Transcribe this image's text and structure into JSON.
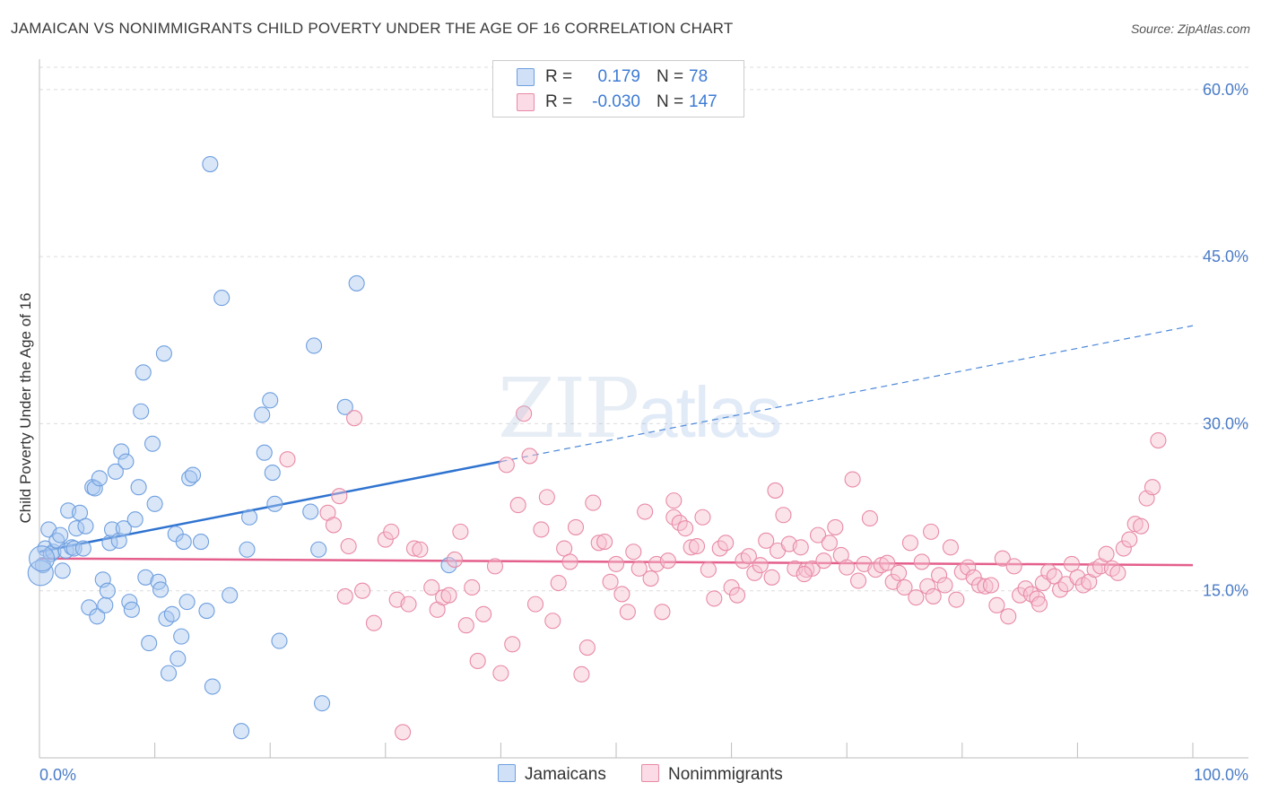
{
  "title": "JAMAICAN VS NONIMMIGRANTS CHILD POVERTY UNDER THE AGE OF 16 CORRELATION CHART",
  "source": "Source: ZipAtlas.com",
  "watermark": {
    "zip": "ZIP",
    "atlas": "atlas"
  },
  "legend": {
    "rows": [
      {
        "r_label": "R =",
        "r_value": "0.179",
        "n_label": "N =",
        "n_value": "78",
        "color": "#a9c8f0",
        "border": "#6f9fdf"
      },
      {
        "r_label": "R =",
        "r_value": "-0.030",
        "n_label": "N =",
        "n_value": "147",
        "color": "#f7c1d1",
        "border": "#e88aa6"
      }
    ]
  },
  "bottom_legend": [
    {
      "label": "Jamaicans",
      "color": "#a9c8f0",
      "border": "#6f9fdf"
    },
    {
      "label": "Nonimmigrants",
      "color": "#f7c1d1",
      "border": "#e88aa6"
    }
  ],
  "chart_data": {
    "type": "scatter",
    "xlabel": "",
    "ylabel": "Child Poverty Under the Age of 16",
    "x_tick_labels": [
      "0.0%",
      "100.0%"
    ],
    "y_tick_labels": [
      "15.0%",
      "30.0%",
      "45.0%",
      "60.0%"
    ],
    "xlim": [
      0,
      100
    ],
    "ylim": [
      0,
      60
    ],
    "grid": true,
    "series": [
      {
        "name": "Jamaicans",
        "color": "#6f9fdf",
        "fill": "#a9c8f0",
        "trend": {
          "x0": 0,
          "y0": 18.5,
          "x1": 40,
          "y1": 26.6,
          "solid_until": 40,
          "x_end": 100,
          "y_end": 38.8
        },
        "points": [
          [
            0.3,
            17.3
          ],
          [
            0.5,
            18.8
          ],
          [
            0.8,
            20.5
          ],
          [
            1.0,
            18.3
          ],
          [
            1.2,
            18.5
          ],
          [
            1.5,
            19.5
          ],
          [
            1.8,
            20.0
          ],
          [
            2.0,
            16.8
          ],
          [
            2.3,
            18.6
          ],
          [
            2.5,
            22.2
          ],
          [
            2.8,
            18.9
          ],
          [
            3.0,
            18.8
          ],
          [
            3.2,
            20.6
          ],
          [
            3.5,
            22.0
          ],
          [
            3.8,
            18.8
          ],
          [
            4.0,
            20.8
          ],
          [
            4.3,
            13.5
          ],
          [
            4.6,
            24.3
          ],
          [
            4.8,
            24.2
          ],
          [
            5.0,
            12.7
          ],
          [
            5.2,
            25.1
          ],
          [
            5.5,
            16.0
          ],
          [
            5.7,
            13.7
          ],
          [
            5.9,
            15.0
          ],
          [
            6.1,
            19.3
          ],
          [
            6.3,
            20.5
          ],
          [
            6.6,
            25.7
          ],
          [
            6.9,
            19.5
          ],
          [
            7.1,
            27.5
          ],
          [
            7.3,
            20.6
          ],
          [
            7.5,
            26.6
          ],
          [
            7.8,
            14.0
          ],
          [
            8.0,
            13.3
          ],
          [
            8.3,
            21.4
          ],
          [
            8.6,
            24.3
          ],
          [
            8.8,
            31.1
          ],
          [
            9.0,
            34.6
          ],
          [
            9.2,
            16.2
          ],
          [
            9.5,
            10.3
          ],
          [
            9.8,
            28.2
          ],
          [
            10.0,
            22.8
          ],
          [
            10.3,
            15.8
          ],
          [
            10.5,
            15.1
          ],
          [
            10.8,
            36.3
          ],
          [
            11.0,
            12.5
          ],
          [
            11.2,
            7.6
          ],
          [
            11.5,
            12.9
          ],
          [
            11.8,
            20.1
          ],
          [
            12.0,
            8.9
          ],
          [
            12.3,
            10.9
          ],
          [
            12.5,
            19.4
          ],
          [
            12.8,
            14.0
          ],
          [
            13.0,
            25.1
          ],
          [
            13.3,
            25.4
          ],
          [
            14.0,
            19.4
          ],
          [
            14.5,
            13.2
          ],
          [
            14.8,
            53.3
          ],
          [
            15.0,
            6.4
          ],
          [
            15.8,
            41.3
          ],
          [
            16.5,
            14.6
          ],
          [
            17.5,
            2.4
          ],
          [
            18.0,
            18.7
          ],
          [
            18.2,
            21.6
          ],
          [
            19.3,
            30.8
          ],
          [
            19.5,
            27.4
          ],
          [
            20.0,
            32.1
          ],
          [
            20.2,
            25.6
          ],
          [
            20.4,
            22.8
          ],
          [
            20.8,
            10.5
          ],
          [
            23.5,
            22.1
          ],
          [
            23.8,
            37.0
          ],
          [
            24.2,
            18.7
          ],
          [
            24.5,
            4.9
          ],
          [
            26.5,
            31.5
          ],
          [
            27.5,
            42.6
          ],
          [
            35.5,
            17.3
          ],
          [
            0.1,
            16.6
          ],
          [
            0.2,
            17.9
          ]
        ]
      },
      {
        "name": "Nonimmigrants",
        "color": "#e88aa6",
        "fill": "#f7c1d1",
        "trend": {
          "x0": 0,
          "y0": 17.9,
          "x1": 100,
          "y1": 17.3
        },
        "points": [
          [
            21.5,
            26.8
          ],
          [
            25.0,
            22.0
          ],
          [
            25.5,
            20.9
          ],
          [
            26.0,
            23.5
          ],
          [
            26.5,
            14.5
          ],
          [
            26.8,
            19.0
          ],
          [
            27.3,
            30.5
          ],
          [
            28.0,
            15.0
          ],
          [
            29.0,
            12.1
          ],
          [
            30.0,
            19.6
          ],
          [
            30.5,
            20.3
          ],
          [
            31.0,
            14.2
          ],
          [
            31.5,
            2.3
          ],
          [
            32.0,
            13.8
          ],
          [
            32.5,
            18.8
          ],
          [
            33.0,
            18.7
          ],
          [
            34.0,
            15.3
          ],
          [
            34.5,
            13.3
          ],
          [
            35.0,
            14.4
          ],
          [
            35.5,
            14.6
          ],
          [
            36.0,
            17.8
          ],
          [
            36.5,
            20.3
          ],
          [
            37.0,
            11.9
          ],
          [
            37.5,
            15.3
          ],
          [
            38.0,
            8.7
          ],
          [
            38.5,
            12.9
          ],
          [
            39.5,
            17.2
          ],
          [
            40.0,
            7.6
          ],
          [
            40.5,
            26.3
          ],
          [
            41.0,
            10.2
          ],
          [
            41.5,
            22.7
          ],
          [
            42.0,
            30.9
          ],
          [
            42.5,
            27.1
          ],
          [
            43.0,
            13.8
          ],
          [
            43.5,
            20.5
          ],
          [
            44.0,
            23.4
          ],
          [
            44.5,
            12.3
          ],
          [
            45.0,
            15.7
          ],
          [
            45.5,
            18.8
          ],
          [
            46.0,
            17.6
          ],
          [
            46.5,
            20.7
          ],
          [
            47.0,
            7.5
          ],
          [
            47.5,
            9.9
          ],
          [
            48.0,
            22.9
          ],
          [
            48.5,
            19.3
          ],
          [
            49.0,
            19.4
          ],
          [
            49.5,
            15.8
          ],
          [
            50.0,
            17.4
          ],
          [
            50.5,
            14.7
          ],
          [
            51.0,
            13.1
          ],
          [
            51.5,
            18.5
          ],
          [
            52.0,
            17.0
          ],
          [
            52.5,
            22.1
          ],
          [
            53.0,
            16.1
          ],
          [
            53.5,
            17.4
          ],
          [
            54.0,
            13.1
          ],
          [
            54.5,
            17.7
          ],
          [
            55.0,
            21.6
          ],
          [
            55.5,
            21.1
          ],
          [
            56.0,
            20.6
          ],
          [
            56.5,
            18.9
          ],
          [
            57.0,
            19.0
          ],
          [
            57.5,
            21.6
          ],
          [
            58.0,
            16.9
          ],
          [
            58.5,
            14.3
          ],
          [
            59.0,
            18.8
          ],
          [
            59.5,
            19.3
          ],
          [
            60.0,
            15.3
          ],
          [
            60.5,
            14.6
          ],
          [
            61.0,
            17.7
          ],
          [
            61.5,
            18.1
          ],
          [
            62.0,
            16.6
          ],
          [
            62.5,
            17.3
          ],
          [
            63.0,
            19.5
          ],
          [
            63.5,
            16.2
          ],
          [
            64.0,
            18.6
          ],
          [
            64.5,
            21.8
          ],
          [
            65.0,
            19.2
          ],
          [
            65.5,
            17.0
          ],
          [
            66.0,
            18.9
          ],
          [
            66.5,
            16.9
          ],
          [
            67.0,
            17.0
          ],
          [
            67.5,
            20.0
          ],
          [
            68.0,
            17.7
          ],
          [
            68.5,
            19.3
          ],
          [
            69.0,
            20.7
          ],
          [
            69.5,
            18.2
          ],
          [
            70.0,
            17.1
          ],
          [
            70.5,
            25.0
          ],
          [
            71.0,
            15.9
          ],
          [
            71.5,
            17.4
          ],
          [
            72.0,
            21.5
          ],
          [
            72.5,
            16.9
          ],
          [
            73.0,
            17.3
          ],
          [
            73.5,
            17.5
          ],
          [
            74.0,
            15.8
          ],
          [
            74.5,
            16.6
          ],
          [
            75.0,
            15.3
          ],
          [
            75.5,
            19.3
          ],
          [
            76.0,
            14.4
          ],
          [
            76.5,
            17.6
          ],
          [
            77.0,
            15.4
          ],
          [
            77.5,
            14.5
          ],
          [
            78.0,
            16.4
          ],
          [
            78.5,
            15.5
          ],
          [
            79.0,
            18.9
          ],
          [
            79.5,
            14.2
          ],
          [
            80.0,
            16.7
          ],
          [
            80.5,
            17.1
          ],
          [
            81.0,
            16.2
          ],
          [
            81.5,
            15.5
          ],
          [
            82.0,
            15.4
          ],
          [
            82.5,
            15.5
          ],
          [
            83.0,
            13.7
          ],
          [
            83.5,
            17.9
          ],
          [
            84.0,
            12.7
          ],
          [
            84.5,
            17.2
          ],
          [
            85.0,
            14.6
          ],
          [
            85.5,
            15.2
          ],
          [
            86.0,
            14.7
          ],
          [
            86.5,
            14.3
          ],
          [
            87.0,
            15.7
          ],
          [
            87.5,
            16.7
          ],
          [
            88.0,
            16.3
          ],
          [
            88.5,
            15.1
          ],
          [
            89.0,
            15.6
          ],
          [
            89.5,
            17.4
          ],
          [
            90.0,
            16.2
          ],
          [
            90.5,
            15.5
          ],
          [
            91.0,
            15.8
          ],
          [
            91.5,
            16.9
          ],
          [
            92.0,
            17.2
          ],
          [
            92.5,
            18.3
          ],
          [
            93.0,
            17.0
          ],
          [
            93.5,
            16.6
          ],
          [
            94.0,
            18.8
          ],
          [
            94.5,
            19.6
          ],
          [
            95.0,
            21.0
          ],
          [
            95.5,
            20.8
          ],
          [
            96.0,
            23.3
          ],
          [
            96.5,
            24.3
          ],
          [
            97.0,
            28.5
          ],
          [
            77.3,
            20.3
          ],
          [
            66.3,
            16.5
          ],
          [
            55.0,
            23.1
          ],
          [
            86.7,
            13.8
          ],
          [
            63.8,
            24.0
          ]
        ]
      }
    ]
  }
}
